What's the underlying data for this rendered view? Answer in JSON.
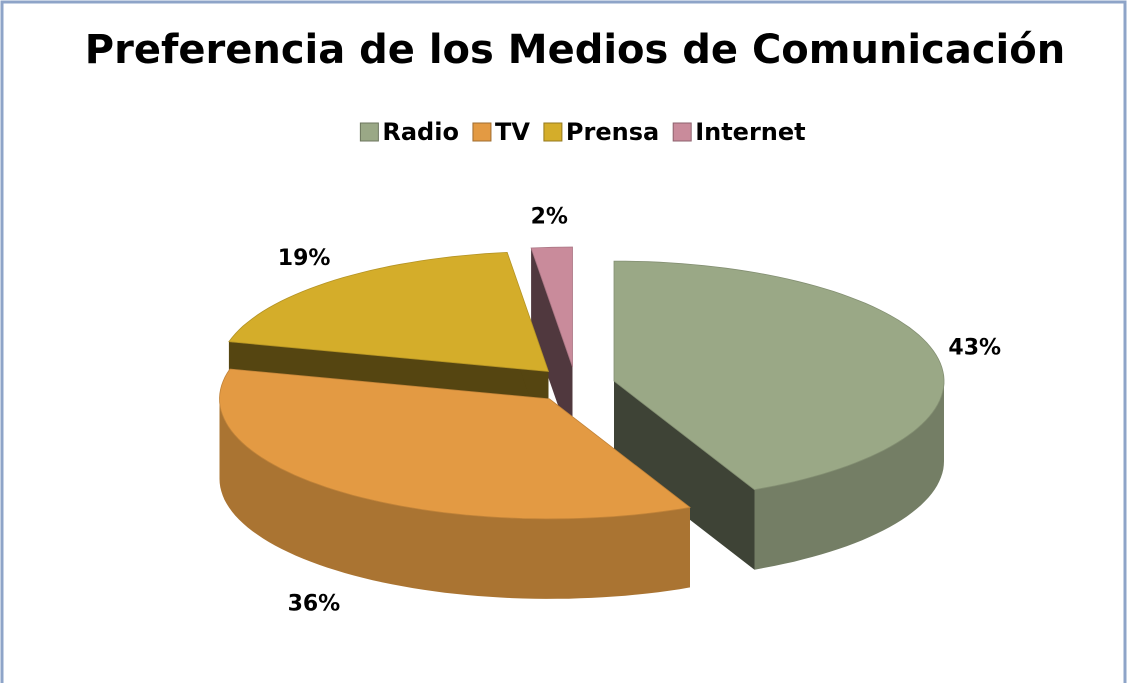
{
  "chart_data": {
    "type": "pie",
    "three_d": true,
    "exploded": true,
    "title": "Preferencia de los Medios de Comunicación",
    "categories": [
      "Radio",
      "TV",
      "Prensa",
      "Internet"
    ],
    "values": [
      43,
      36,
      19,
      2
    ],
    "value_labels": [
      "43%",
      "36%",
      "19%",
      "2%"
    ],
    "colors": [
      "#9aa886",
      "#e39a43",
      "#d4ad2a",
      "#c98b9b"
    ],
    "legend": "top"
  }
}
